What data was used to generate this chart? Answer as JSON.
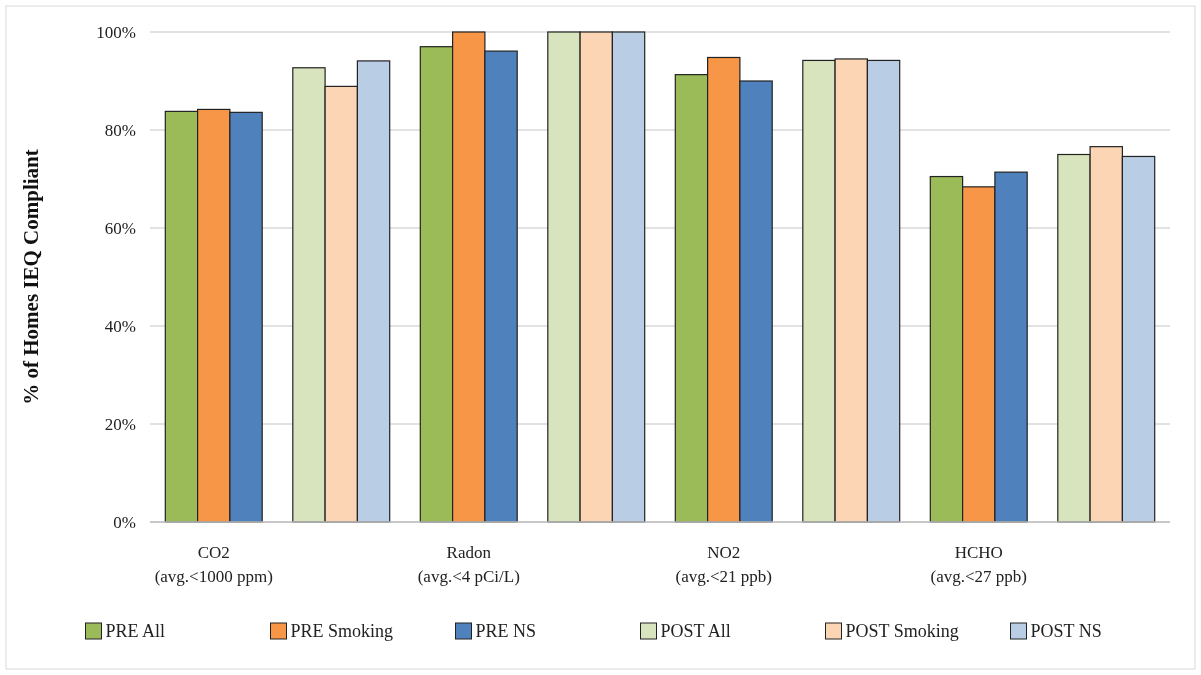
{
  "chart_data": {
    "type": "bar",
    "ylabel": "% of Homes IEQ Compliant",
    "categories": [
      "CO2\n(avg.<1000 ppm)",
      null,
      "Radon\n(avg.<4 pCi/L)",
      null,
      "NO2\n(avg.<21 ppb)",
      null,
      "HCHO\n(avg.<27 ppb)",
      null
    ],
    "series": [
      {
        "name": "PRE All",
        "color": "#9bbb59",
        "values": [
          83.8,
          null,
          97.0,
          null,
          91.3,
          null,
          70.5,
          null
        ]
      },
      {
        "name": "PRE Smoking",
        "color": "#f79646",
        "values": [
          84.2,
          null,
          100,
          null,
          94.8,
          null,
          68.4,
          null
        ]
      },
      {
        "name": "PRE NS",
        "color": "#4f81bd",
        "values": [
          83.6,
          null,
          96.1,
          null,
          90.0,
          null,
          71.4,
          null
        ]
      },
      {
        "name": "POST All",
        "color": "#d7e4bd",
        "values": [
          null,
          92.7,
          null,
          100,
          null,
          94.2,
          null,
          75.0
        ]
      },
      {
        "name": "POST Smoking",
        "color": "#fcd5b5",
        "values": [
          null,
          88.9,
          null,
          100,
          null,
          94.5,
          null,
          76.6
        ]
      },
      {
        "name": "POST NS",
        "color": "#b9cde5",
        "values": [
          null,
          94.1,
          null,
          100,
          null,
          94.2,
          null,
          74.6
        ]
      }
    ],
    "ylim": [
      0,
      100
    ],
    "yticks": [
      {
        "value": 0,
        "label": "0%"
      },
      {
        "value": 20,
        "label": "20%"
      },
      {
        "value": 40,
        "label": "40%"
      },
      {
        "value": 60,
        "label": "60%"
      },
      {
        "value": 80,
        "label": "80%"
      },
      {
        "value": 100,
        "label": "100%"
      }
    ],
    "grid": "y",
    "legend": "bottom"
  }
}
